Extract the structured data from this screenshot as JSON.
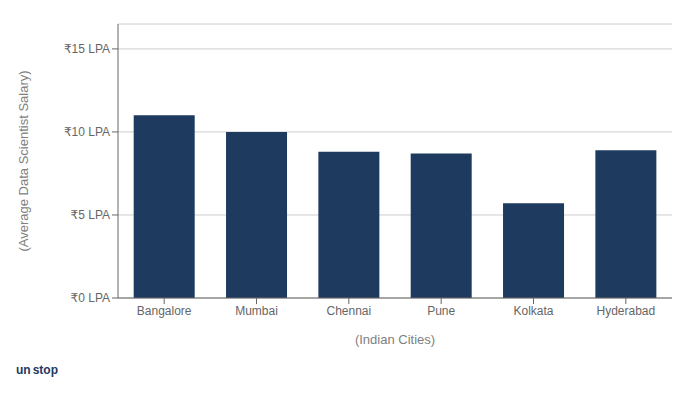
{
  "chart_data": {
    "type": "bar",
    "categories": [
      "Bangalore",
      "Mumbai",
      "Chennai",
      "Pune",
      "Kolkata",
      "Hyderabad"
    ],
    "values": [
      11.0,
      10.0,
      8.8,
      8.7,
      5.7,
      8.9
    ],
    "color": "#1e3a5f",
    "xlabel": "(Indian Cities)",
    "ylabel": "(Average Data Scientist Salary)",
    "ylim": [
      0,
      16.5
    ],
    "yticks": [
      {
        "value": 0,
        "label": "₹0 LPA"
      },
      {
        "value": 5,
        "label": "₹5 LPA"
      },
      {
        "value": 10,
        "label": "₹10 LPA"
      },
      {
        "value": 15,
        "label": "₹15 LPA"
      }
    ],
    "grid": true,
    "annotations": [
      "un",
      "stop"
    ]
  }
}
